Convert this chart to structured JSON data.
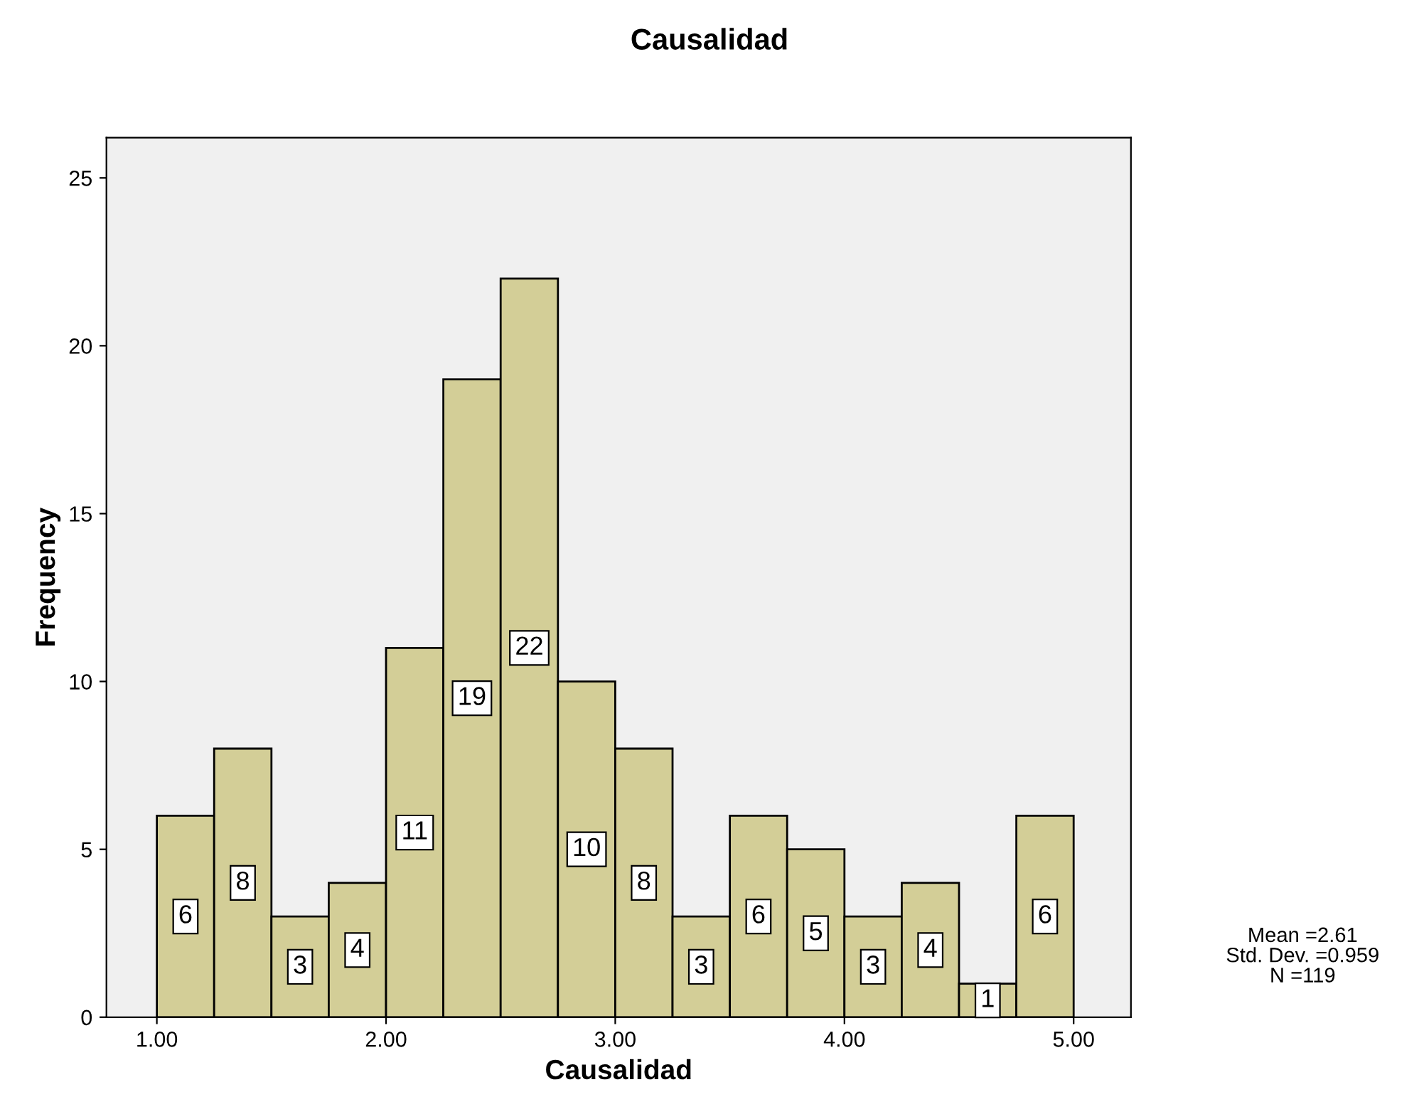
{
  "chart_data": {
    "type": "histogram",
    "title": "Causalidad",
    "xlabel": "Causalidad",
    "ylabel": "Frequency",
    "bins": [
      1.0,
      1.25,
      1.5,
      1.75,
      2.0,
      2.25,
      2.5,
      2.75,
      3.0,
      3.25,
      3.5,
      3.75,
      4.0,
      4.25,
      4.5,
      4.75,
      5.0
    ],
    "values": [
      6,
      8,
      3,
      4,
      11,
      19,
      22,
      10,
      8,
      3,
      6,
      5,
      3,
      4,
      1,
      6
    ],
    "color": "#d3ce97",
    "xlim": [
      0.78,
      5.25
    ],
    "xticks": [
      {
        "value": 1,
        "label": "1.00"
      },
      {
        "value": 2,
        "label": "2.00"
      },
      {
        "value": 3,
        "label": "3.00"
      },
      {
        "value": 4,
        "label": "4.00"
      },
      {
        "value": 5,
        "label": "5.00"
      }
    ],
    "ylim": [
      0,
      26.2
    ],
    "yticks": [
      0,
      5,
      10,
      15,
      20,
      25
    ],
    "data_labels": true,
    "grid": false,
    "legend": false,
    "annotations": [
      "Mean =2.61",
      "Std. Dev. =0.959",
      "N =119"
    ]
  }
}
